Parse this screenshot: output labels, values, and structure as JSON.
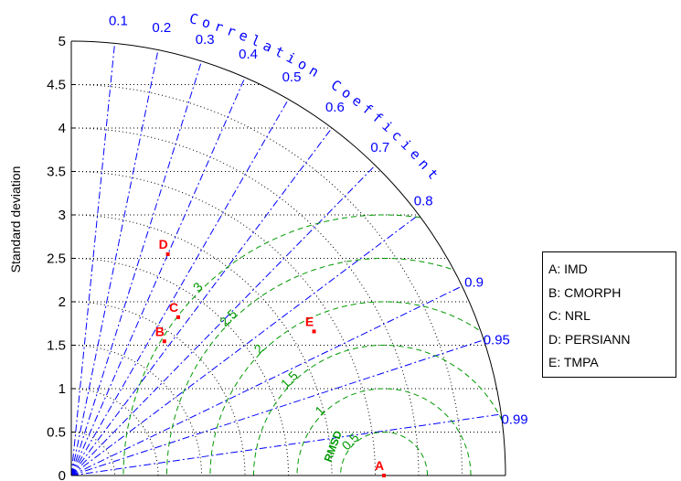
{
  "chart_data": {
    "type": "taylor",
    "ylabel": "Standard deviation",
    "arc_label": "Correlation Coefficient",
    "rmsd_label": "RMSD",
    "ylim": [
      0,
      5
    ],
    "std_ticks": [
      "0",
      "0.5",
      "1",
      "1.5",
      "2",
      "2.5",
      "3",
      "3.5",
      "4",
      "4.5",
      "5"
    ],
    "std_tick_values": [
      0,
      0.5,
      1,
      1.5,
      2,
      2.5,
      3,
      3.5,
      4,
      4.5,
      5
    ],
    "correlation_ticks": [
      0.1,
      0.2,
      0.3,
      0.4,
      0.5,
      0.6,
      0.7,
      0.8,
      0.9,
      0.95,
      0.99
    ],
    "correlation_tick_labels": [
      "0.1",
      "0.2",
      "0.3",
      "0.4",
      "0.5",
      "0.6",
      "0.7",
      "0.8",
      "0.9",
      "0.95",
      "0.99"
    ],
    "reference_std": 3.6,
    "rmsd_contours": [
      0.5,
      1,
      1.5,
      2,
      2.5,
      3
    ],
    "rmsd_contour_labels": [
      "0.5",
      "1",
      "1.5",
      "2",
      "2.5",
      "3"
    ],
    "points": [
      {
        "label": "A",
        "std": 3.6,
        "corr": 1.0
      },
      {
        "label": "B",
        "std": 1.88,
        "corr": 0.57
      },
      {
        "label": "C",
        "std": 2.2,
        "corr": 0.56
      },
      {
        "label": "D",
        "std": 2.78,
        "corr": 0.4
      },
      {
        "label": "E",
        "std": 3.25,
        "corr": 0.86
      }
    ],
    "legend": [
      {
        "key": "A",
        "text": "A: IMD"
      },
      {
        "key": "B",
        "text": "B: CMORPH"
      },
      {
        "key": "C",
        "text": "C: NRL"
      },
      {
        "key": "D",
        "text": "D: PERSIANN"
      },
      {
        "key": "E",
        "text": "E: TMPA"
      }
    ],
    "colors": {
      "axis": "#000000",
      "correlation": "#0000ff",
      "rmsd": "#009900",
      "points": "#ff0000",
      "std_arcs": "#000000"
    }
  }
}
